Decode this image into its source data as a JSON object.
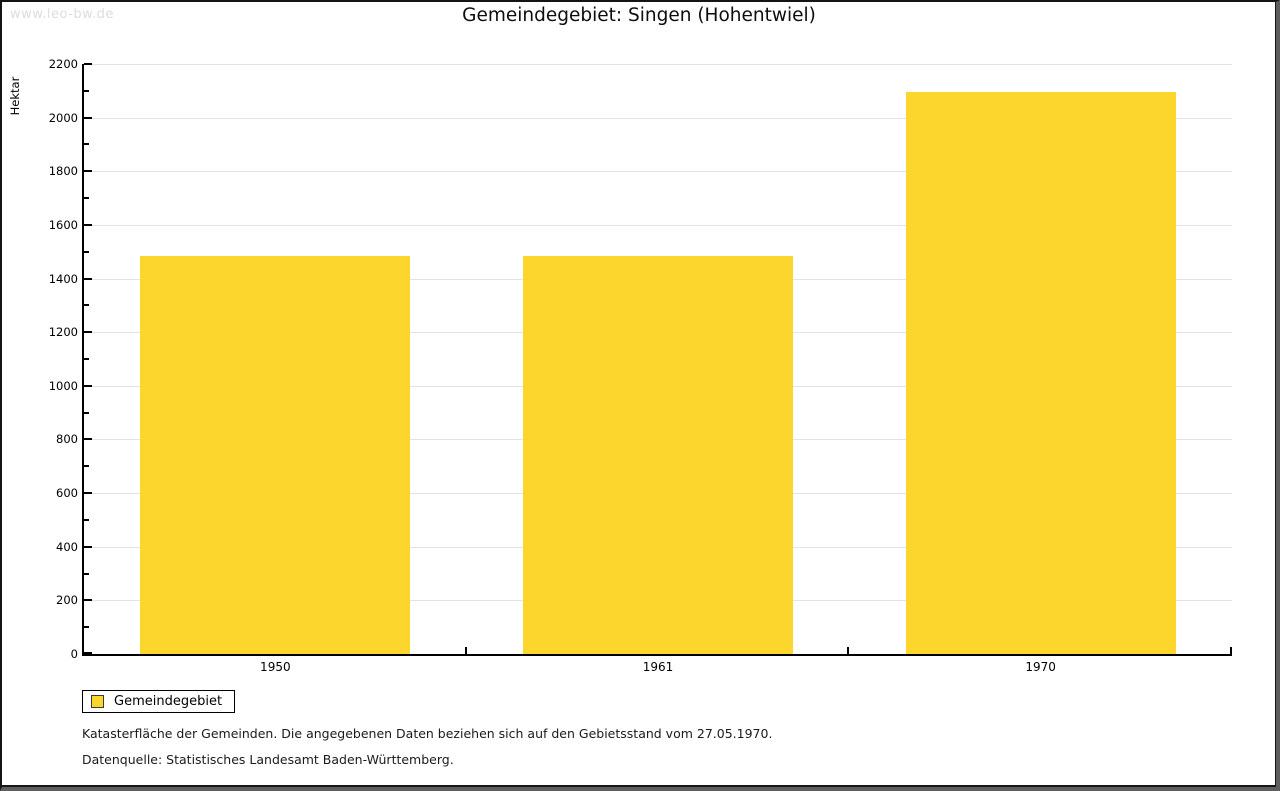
{
  "watermark": "www.leo-bw.de",
  "title": "Gemeindegebiet: Singen (Hohentwiel)",
  "chart_data": {
    "type": "bar",
    "title": "Gemeindegebiet: Singen (Hohentwiel)",
    "categories": [
      "1950",
      "1961",
      "1970"
    ],
    "series": [
      {
        "name": "Gemeindegebiet",
        "values": [
          1485,
          1485,
          2095
        ]
      }
    ],
    "xlabel": "",
    "ylabel": "Hektar",
    "ylim": [
      0,
      2200
    ],
    "ytick_step": 200,
    "yminor_step": 100,
    "grid": "horizontal",
    "legend_position": "bottom-left",
    "bar_color": "#FCD62D"
  },
  "legend": {
    "items": [
      {
        "label": "Gemeindegebiet",
        "color": "#FCD62D"
      }
    ]
  },
  "footer": {
    "note": "Katasterfläche der Gemeinden. Die angegebenen Daten beziehen sich auf den Gebietsstand vom 27.05.1970.",
    "source": "Datenquelle: Statistisches Landesamt Baden-Württemberg."
  },
  "colors": {
    "bar": "#FCD62D",
    "gridline": "#E3E3E3",
    "axis": "#000000",
    "watermark": "#DDDDDD",
    "frame_gray": "#5E5E5E"
  }
}
